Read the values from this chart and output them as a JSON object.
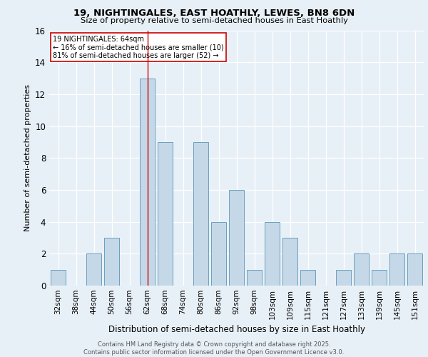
{
  "title_line1": "19, NIGHTINGALES, EAST HOATHLY, LEWES, BN8 6DN",
  "title_line2": "Size of property relative to semi-detached houses in East Hoathly",
  "xlabel": "Distribution of semi-detached houses by size in East Hoathly",
  "ylabel": "Number of semi-detached properties",
  "categories": [
    "32sqm",
    "38sqm",
    "44sqm",
    "50sqm",
    "56sqm",
    "62sqm",
    "68sqm",
    "74sqm",
    "80sqm",
    "86sqm",
    "92sqm",
    "98sqm",
    "103sqm",
    "109sqm",
    "115sqm",
    "121sqm",
    "127sqm",
    "133sqm",
    "139sqm",
    "145sqm",
    "151sqm"
  ],
  "values": [
    1,
    0,
    2,
    3,
    0,
    13,
    9,
    0,
    9,
    4,
    6,
    1,
    4,
    3,
    1,
    0,
    1,
    2,
    1,
    2,
    2
  ],
  "bar_color": "#c5d8e8",
  "bar_edge_color": "#6a9fbf",
  "subject_x": "62sqm",
  "subject_size": "64sqm",
  "subject_line_color": "#cc0000",
  "annotation_text": "19 NIGHTINGALES: 64sqm\n← 16% of semi-detached houses are smaller (10)\n81% of semi-detached houses are larger (52) →",
  "annotation_box_color": "#ffffff",
  "annotation_box_edge_color": "#cc0000",
  "ylim": [
    0,
    16
  ],
  "yticks": [
    0,
    2,
    4,
    6,
    8,
    10,
    12,
    14,
    16
  ],
  "footer_line1": "Contains HM Land Registry data © Crown copyright and database right 2025.",
  "footer_line2": "Contains public sector information licensed under the Open Government Licence v3.0.",
  "bg_color": "#e8f0f7",
  "plot_bg_color": "#e8f0f7"
}
